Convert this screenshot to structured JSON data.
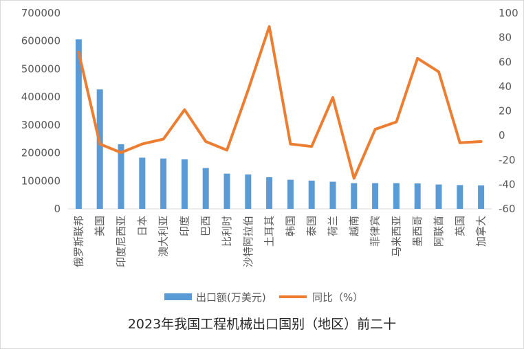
{
  "chart_data": {
    "type": "bar",
    "title": "2023年我国工程机械出口国别（地区）前二十",
    "categories": [
      "俄罗斯联邦",
      "美国",
      "印度尼西亚",
      "日本",
      "澳大利亚",
      "印度",
      "巴西",
      "比利时",
      "沙特阿拉伯",
      "土耳其",
      "韩国",
      "泰国",
      "荷兰",
      "越南",
      "菲律宾",
      "马来西亚",
      "墨西哥",
      "阿联酋",
      "英国",
      "加拿大"
    ],
    "series": [
      {
        "name": "出口额(万美元)",
        "type": "bar",
        "axis": "left",
        "color": "#5b9bd5",
        "values": [
          606000,
          427000,
          231000,
          183000,
          180000,
          177000,
          146000,
          126000,
          123000,
          113000,
          104000,
          101000,
          97000,
          92000,
          92000,
          92000,
          91000,
          87000,
          85000,
          84000
        ]
      },
      {
        "name": "同比（%）",
        "type": "line",
        "axis": "right",
        "color": "#ed7d31",
        "values": [
          68,
          -7,
          -14,
          -7,
          -3,
          21,
          -5,
          -12,
          37,
          89,
          -7,
          -9,
          31,
          -35,
          5,
          11,
          63,
          52,
          -6,
          -5
        ]
      }
    ],
    "y_left": {
      "min": 0,
      "max": 700000,
      "ticks": [
        "0",
        "100000",
        "200000",
        "300000",
        "400000",
        "500000",
        "600000",
        "700000"
      ]
    },
    "y_right": {
      "min": -60,
      "max": 100,
      "ticks": [
        "-60",
        "-40",
        "-20",
        "0",
        "20",
        "40",
        "60",
        "80",
        "100"
      ]
    },
    "grid": false,
    "legend_position": "bottom"
  }
}
